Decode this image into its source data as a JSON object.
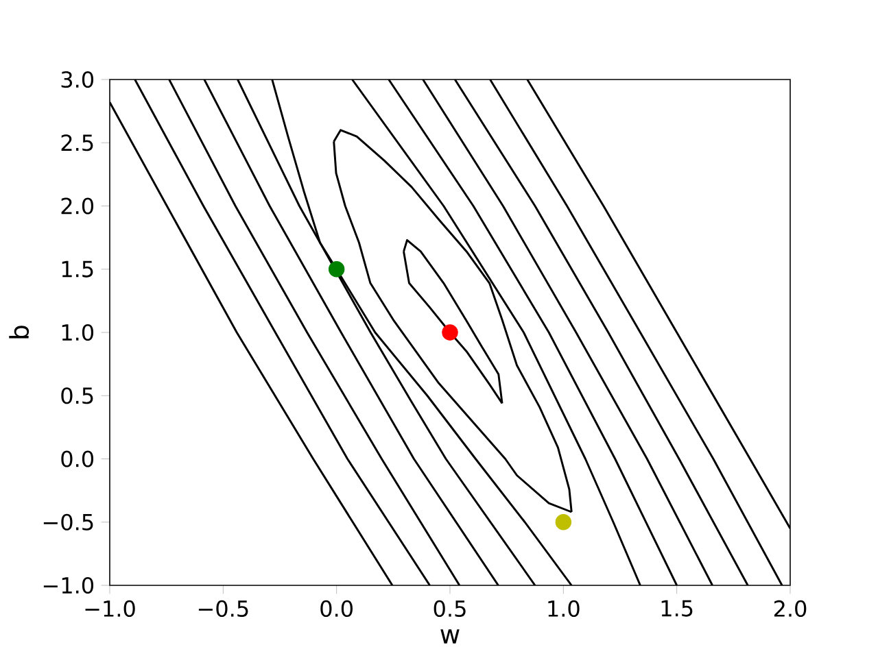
{
  "chart_data": {
    "type": "line",
    "xlabel": "w",
    "ylabel": "b",
    "xlim": [
      -1,
      2
    ],
    "ylim": [
      -1,
      3
    ],
    "xticks": [
      {
        "value": -1,
        "label": "−1.0"
      },
      {
        "value": -0.5,
        "label": "−0.5"
      },
      {
        "value": 0,
        "label": "0.0"
      },
      {
        "value": 0.5,
        "label": "0.5"
      },
      {
        "value": 1,
        "label": "1.0"
      },
      {
        "value": 1.5,
        "label": "1.5"
      },
      {
        "value": 2,
        "label": "2.0"
      }
    ],
    "yticks": [
      {
        "value": -1,
        "label": "−1.0"
      },
      {
        "value": -0.5,
        "label": "−0.5"
      },
      {
        "value": 0,
        "label": "0.0"
      },
      {
        "value": 0.5,
        "label": "0.5"
      },
      {
        "value": 1,
        "label": "1.0"
      },
      {
        "value": 1.5,
        "label": "1.5"
      },
      {
        "value": 2,
        "label": "2.0"
      },
      {
        "value": 2.5,
        "label": "2.5"
      },
      {
        "value": 3,
        "label": "3.0"
      }
    ],
    "series": [
      {
        "color": "#000000",
        "x": [
          0.296,
          0.311,
          0.371,
          0.472,
          0.57,
          0.643,
          0.714,
          0.73
        ],
        "values": [
          1.64,
          1.73,
          1.64,
          1.39,
          1.1,
          0.88,
          0.67,
          0.44
        ]
      },
      {
        "color": "#000000",
        "x": [
          0.296,
          0.32,
          0.41,
          0.5,
          0.573,
          0.674,
          0.73
        ],
        "values": [
          1.64,
          1.39,
          1.2,
          1.0,
          0.85,
          0.59,
          0.44
        ]
      },
      {
        "color": "#000000",
        "x": [
          -0.012,
          0.018,
          0.089,
          0.21,
          0.331,
          0.452,
          0.573,
          0.674,
          0.73,
          0.795,
          0.895,
          0.976,
          1.026,
          1.036
        ],
        "values": [
          2.51,
          2.6,
          2.55,
          2.36,
          2.15,
          1.89,
          1.64,
          1.39,
          1.1,
          0.74,
          0.41,
          0.09,
          -0.24,
          -0.42
        ]
      },
      {
        "color": "#000000",
        "x": [
          -0.012,
          -0.002,
          0.038,
          0.099,
          0.149,
          0.25,
          0.45,
          0.744,
          0.795,
          0.936,
          1.036
        ],
        "values": [
          2.51,
          2.26,
          2.0,
          1.71,
          1.39,
          1.1,
          0.6,
          0.0,
          -0.13,
          -0.35,
          -0.42
        ]
      },
      {
        "color": "#000000",
        "x": [
          -1,
          -0.748,
          -0.44,
          -0.103,
          0.246
        ],
        "values": [
          2.82,
          2,
          1,
          0,
          -1
        ]
      },
      {
        "color": "#000000",
        "x": [
          -0.889,
          -0.587,
          -0.27,
          0.048,
          0.411
        ],
        "values": [
          3,
          2,
          1,
          0,
          -1
        ]
      },
      {
        "color": "#000000",
        "x": [
          -0.738,
          -0.446,
          -0.13,
          0.199,
          0.542
        ],
        "values": [
          3,
          2,
          1,
          0,
          -1
        ]
      },
      {
        "color": "#000000",
        "x": [
          -0.583,
          -0.295,
          0.02,
          0.341,
          0.713
        ],
        "values": [
          3,
          2,
          1,
          0,
          -1
        ]
      },
      {
        "color": "#000000",
        "x": [
          -0.436,
          -0.164,
          0.15,
          0.331,
          0.482,
          0.875
        ],
        "values": [
          3,
          2,
          1,
          0.45,
          0,
          -1
        ]
      },
      {
        "color": "#000000",
        "x": [
          -0.284,
          -0.214,
          -0.143,
          -0.073,
          0.0,
          0.17,
          0.4,
          0.613,
          0.83,
          1.036
        ],
        "values": [
          3,
          2.55,
          2.11,
          1.71,
          1.5,
          1.0,
          0.5,
          0,
          -0.5,
          -1
        ]
      },
      {
        "color": "#000000",
        "x": [
          0.069,
          0.472,
          0.825,
          1.097,
          1.22,
          1.339
        ],
        "values": [
          3,
          2,
          1,
          0,
          -0.5,
          -1
        ]
      },
      {
        "color": "#000000",
        "x": [
          0.23,
          0.603,
          0.936,
          1.228,
          1.5
        ],
        "values": [
          3,
          2,
          1,
          0,
          -1
        ]
      },
      {
        "color": "#000000",
        "x": [
          0.381,
          0.734,
          1.056,
          1.369,
          1.657
        ],
        "values": [
          3,
          2,
          1,
          0,
          -1
        ]
      },
      {
        "color": "#000000",
        "x": [
          0.522,
          0.875,
          1.198,
          1.51,
          1.813
        ],
        "values": [
          3,
          2,
          1,
          0,
          -1
        ]
      },
      {
        "color": "#000000",
        "x": [
          0.677,
          1.016,
          1.339,
          1.661,
          1.964
        ],
        "values": [
          3,
          2,
          1,
          0,
          -1
        ]
      },
      {
        "color": "#000000",
        "x": [
          0.841,
          1.177,
          1.5,
          1.823,
          2
        ],
        "values": [
          3,
          2,
          1,
          0,
          -0.55
        ]
      },
      {
        "type": "scatter",
        "color": "#008000",
        "x": [
          0
        ],
        "values": [
          1.5
        ]
      },
      {
        "type": "scatter",
        "color": "#ff0000",
        "x": [
          0.5
        ],
        "values": [
          1.0
        ]
      },
      {
        "type": "scatter",
        "color": "#bfbf00",
        "x": [
          1.0
        ],
        "values": [
          -0.5
        ]
      }
    ]
  }
}
